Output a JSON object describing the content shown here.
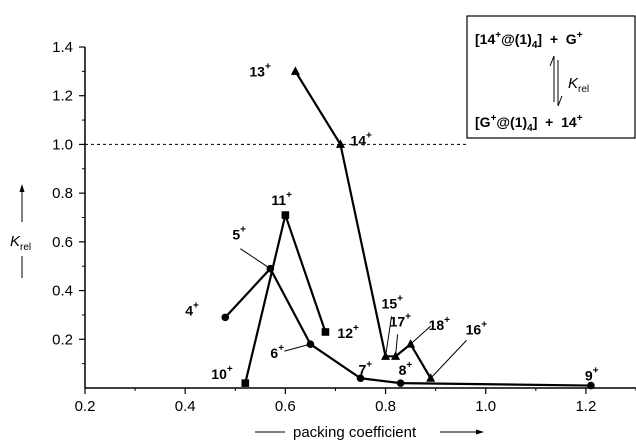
{
  "chart_data": {
    "type": "scatter",
    "xlabel": "packing coefficient",
    "ylabel_main": "K",
    "ylabel_sub": "rel",
    "xlim": [
      0.2,
      1.3
    ],
    "ylim": [
      0.0,
      1.4
    ],
    "x_ticks": [
      0.2,
      0.4,
      0.6,
      0.8,
      1.0,
      1.2
    ],
    "x_tick_labels": [
      "0.2",
      "0.4",
      "0.6",
      "0.8",
      "1.0",
      "1.2"
    ],
    "y_ticks": [
      0.2,
      0.4,
      0.6,
      0.8,
      1.0,
      1.2,
      1.4
    ],
    "y_tick_labels": [
      "0.2",
      "0.4",
      "0.6",
      "0.8",
      "1.0",
      "1.2",
      "1.4"
    ],
    "reference_line": {
      "y": 1.0,
      "style": "dashed"
    },
    "series": [
      {
        "marker": "circle",
        "points": [
          {
            "label": "4",
            "x": 0.48,
            "y": 0.29
          },
          {
            "label": "5",
            "x": 0.57,
            "y": 0.49
          },
          {
            "label": "6",
            "x": 0.65,
            "y": 0.18
          },
          {
            "label": "7",
            "x": 0.75,
            "y": 0.04
          },
          {
            "label": "8",
            "x": 0.83,
            "y": 0.02
          },
          {
            "label": "9",
            "x": 1.21,
            "y": 0.01
          }
        ]
      },
      {
        "marker": "square",
        "points": [
          {
            "label": "10",
            "x": 0.52,
            "y": 0.02
          },
          {
            "label": "11",
            "x": 0.6,
            "y": 0.71
          },
          {
            "label": "12",
            "x": 0.68,
            "y": 0.23
          }
        ]
      },
      {
        "marker": "triangle",
        "points": [
          {
            "label": "13",
            "x": 0.62,
            "y": 1.3
          },
          {
            "label": "14",
            "x": 0.71,
            "y": 1.0
          },
          {
            "label": "15",
            "x": 0.8,
            "y": 0.13
          },
          {
            "label": "17",
            "x": 0.82,
            "y": 0.13
          },
          {
            "label": "18",
            "x": 0.85,
            "y": 0.18
          },
          {
            "label": "16",
            "x": 0.89,
            "y": 0.04
          }
        ]
      }
    ],
    "legend_box": {
      "top_line": [
        "[14",
        "+",
        "@(1)",
        "4",
        "]  +  G",
        "+"
      ],
      "k_label": "K",
      "k_sub": "rel",
      "bottom_line": [
        "[G",
        "+",
        "@(1)",
        "4",
        "]  +  14",
        "+"
      ]
    },
    "point_label_superscript": "+"
  }
}
